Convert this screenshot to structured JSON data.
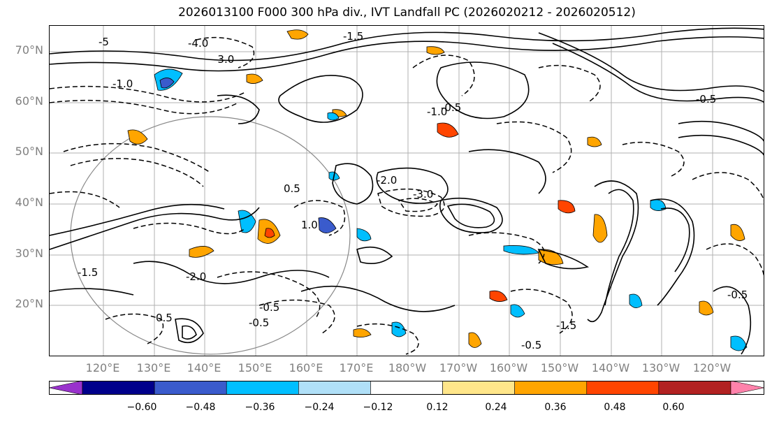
{
  "title": "2026013100 F000 300 hPa div., IVT Landfall PC (2026020212 - 2026020512)",
  "map": {
    "lat_labels": [
      "70°N",
      "60°N",
      "50°N",
      "40°N",
      "30°N",
      "20°N"
    ],
    "lon_labels": [
      "120°E",
      "130°E",
      "140°E",
      "150°E",
      "160°E",
      "170°E",
      "180°W",
      "170°W",
      "160°W",
      "150°W",
      "140°W",
      "130°W",
      "120°W"
    ],
    "contour_labels": [
      "-3.0",
      "-4.0",
      "-5",
      "-1.0",
      "-2.0",
      "-1.5",
      "-0.5",
      "0.5",
      "1.0",
      "-0.5",
      "0.5",
      "-3.0",
      "-2.0",
      "-1.5",
      "-0.5",
      "-1.5",
      "-0.5",
      "-1.0",
      "-0.5",
      "-0.5"
    ]
  },
  "colorbar": {
    "colors": [
      "#9932CC",
      "#00008B",
      "#3A5BCC",
      "#00BFFF",
      "#B0E0F8",
      "#FFFFFF",
      "#FFE68A",
      "#FFA500",
      "#FF4500",
      "#B22222",
      "#FF82AB"
    ],
    "ticks": [
      "−0.60",
      "−0.48",
      "−0.36",
      "−0.24",
      "−0.12",
      "0.12",
      "0.24",
      "0.36",
      "0.48",
      "0.60"
    ]
  }
}
